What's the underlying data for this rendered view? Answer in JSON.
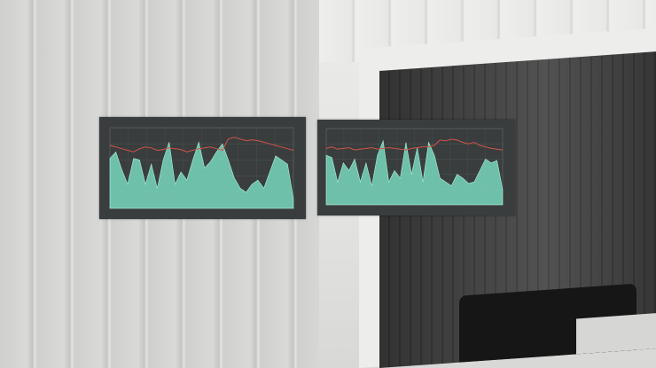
{
  "scene": {
    "description_colors": {
      "wall": "#d8d8d6",
      "panel_bg": "#3a3d3d",
      "area_fill": "#79d7be",
      "line_color": "#d0534a"
    }
  },
  "chart_data": [
    {
      "type": "area",
      "title": "",
      "series": [
        {
          "values": [
            62,
            70,
            48,
            30,
            62,
            60,
            30,
            55,
            25,
            60,
            82,
            30,
            45,
            35,
            60,
            82,
            50,
            58,
            70,
            80,
            60,
            38,
            25,
            20,
            30,
            35,
            25,
            45,
            65,
            60,
            55,
            12
          ]
        },
        {
          "values": [
            78,
            76,
            74,
            72,
            70,
            74,
            76,
            75,
            72,
            73,
            75,
            74,
            73,
            70,
            72,
            74,
            75,
            76,
            74,
            72,
            86,
            88,
            86,
            84,
            85,
            84,
            82,
            80,
            78,
            76,
            74,
            72
          ]
        }
      ],
      "grid": true
    },
    {
      "type": "area",
      "title": "",
      "series": [
        {
          "values": [
            65,
            62,
            30,
            55,
            45,
            60,
            30,
            55,
            25,
            65,
            84,
            30,
            45,
            35,
            82,
            40,
            75,
            30,
            82,
            65,
            35,
            30,
            25,
            40,
            35,
            28,
            30,
            45,
            60,
            55,
            58,
            20
          ]
        },
        {
          "values": [
            74,
            76,
            73,
            74,
            75,
            72,
            73,
            74,
            75,
            73,
            74,
            75,
            74,
            73,
            72,
            74,
            75,
            76,
            76,
            78,
            85,
            84,
            86,
            85,
            82,
            80,
            82,
            78,
            76,
            74,
            73,
            72
          ]
        }
      ],
      "grid": true
    }
  ]
}
